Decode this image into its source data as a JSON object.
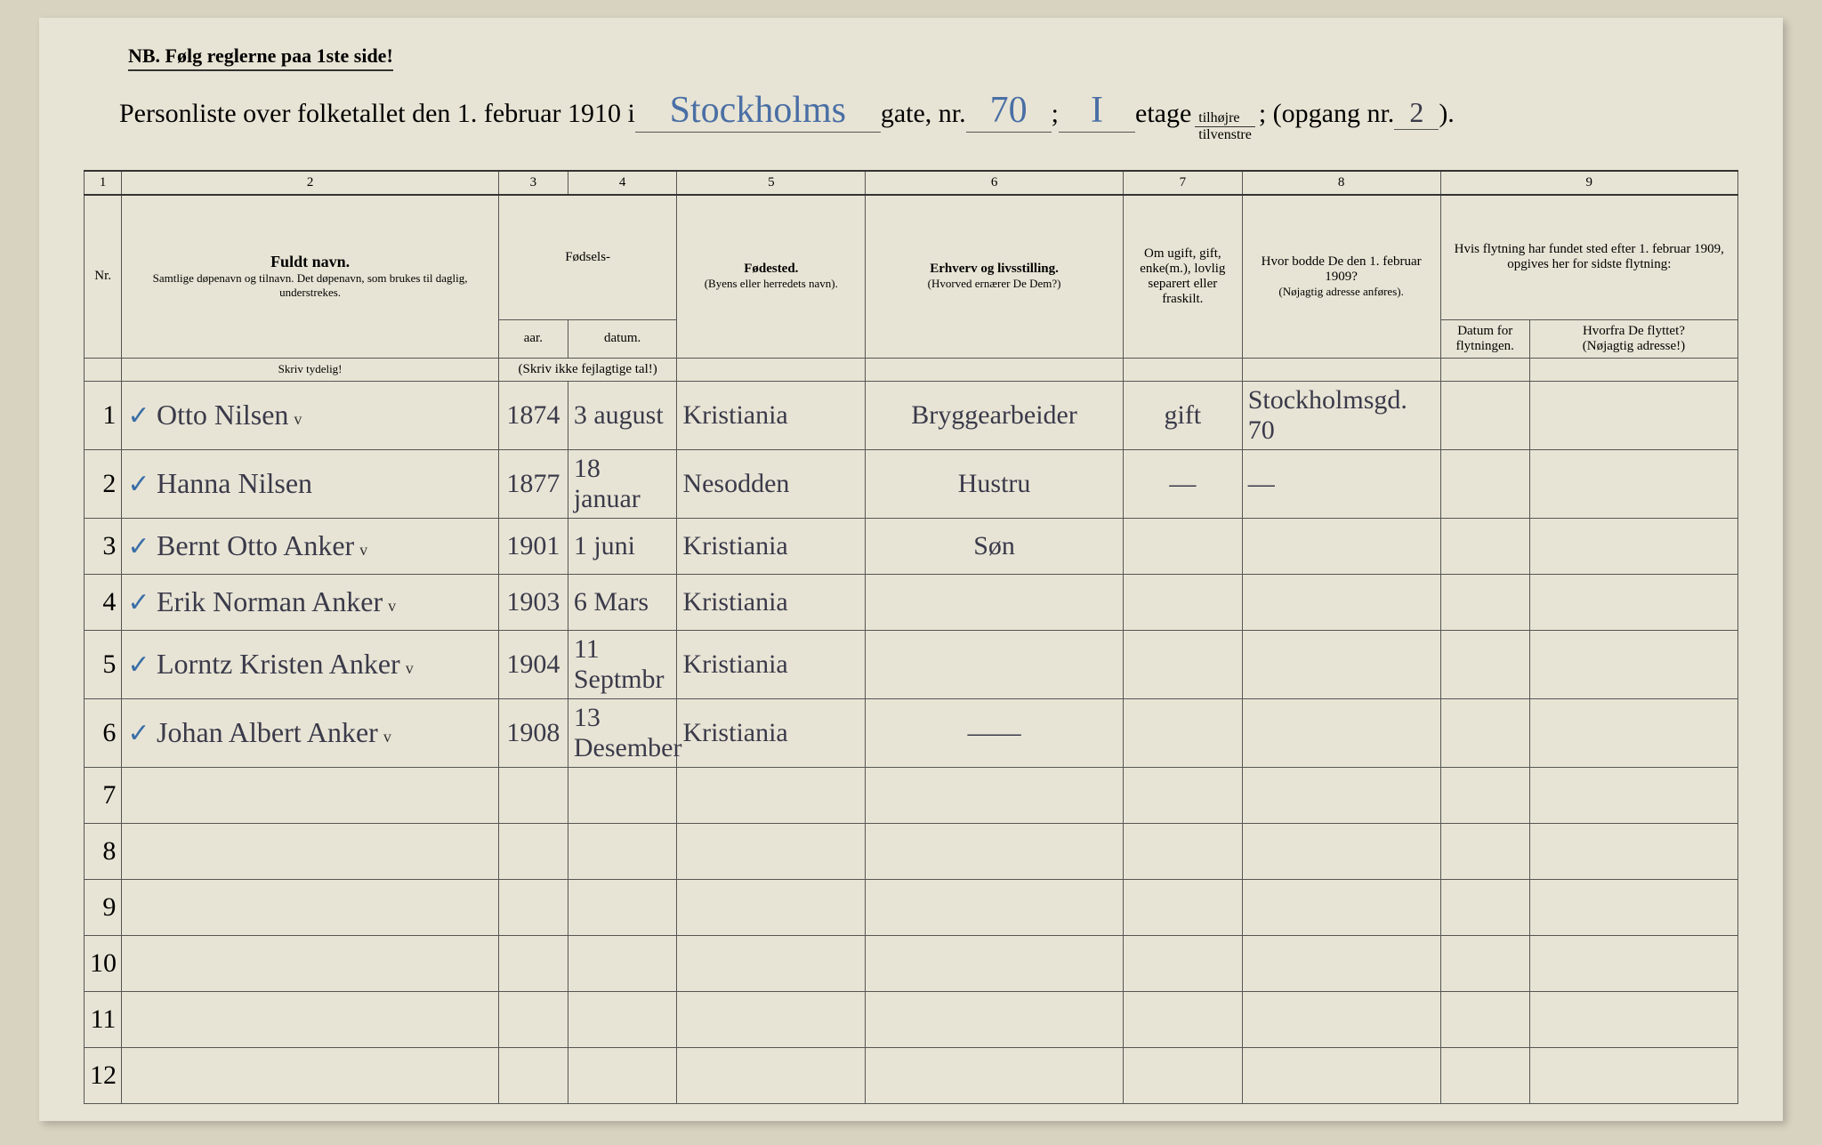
{
  "nb": "NB.  Følg reglerne paa 1ste side!",
  "title": {
    "prefix": "Personliste over folketallet den 1. februar 1910 i",
    "street": "Stockholms",
    "gate_label": "gate, nr.",
    "nr": "70",
    "semicolon": ";",
    "etage_val": "I",
    "etage_label": "etage",
    "tilhojre": "tilhøjre",
    "tilvenstre": "tilvenstre",
    "opgang_label": "; (opgang nr.",
    "opgang": "2",
    "close": ")."
  },
  "colnums": [
    "1",
    "2",
    "3",
    "4",
    "5",
    "6",
    "7",
    "8",
    "9"
  ],
  "headers": {
    "nr": "Nr.",
    "fuldt_navn": "Fuldt navn.",
    "fuldt_sub": "Samtlige døpenavn og tilnavn. Det døpenavn, som brukes til daglig, understrekes.",
    "fodsels": "Fødsels-",
    "aar": "aar.",
    "datum": "datum.",
    "fodsels_sub": "(Skriv ikke fejlagtige tal!)",
    "fodested": "Fødested.",
    "fodested_sub": "(Byens eller herredets navn).",
    "erhverv": "Erhverv og livsstilling.",
    "erhverv_sub": "(Hvorved ernærer De Dem?)",
    "ugift": "Om ugift, gift, enke(m.), lovlig separert eller fraskilt.",
    "bodde": "Hvor bodde De den 1. februar 1909?",
    "bodde_sub": "(Nøjagtig adresse anføres).",
    "flytning": "Hvis flytning har fundet sted efter 1. februar 1909, opgives her for sidste flytning:",
    "datum_flyt": "Datum for flytningen.",
    "hvorfra": "Hvorfra De flyttet?",
    "hvorfra_sub": "(Nøjagtig adresse!)",
    "skriv_tydelig": "Skriv tydelig!"
  },
  "rows": [
    {
      "n": "1",
      "check": "✓",
      "name": "Otto Nilsen",
      "v": "v",
      "aar": "1874",
      "dat": "3 august",
      "sted": "Kristiania",
      "erhverv": "Bryggearbeider",
      "ugift": "gift",
      "bodde": "Stockholmsgd. 70"
    },
    {
      "n": "2",
      "check": "✓",
      "name": "Hanna Nilsen",
      "v": "",
      "aar": "1877",
      "dat": "18 januar",
      "sted": "Nesodden",
      "erhverv": "Hustru",
      "ugift": "—",
      "bodde": "—"
    },
    {
      "n": "3",
      "check": "✓",
      "name": "Bernt Otto Anker",
      "v": "v",
      "aar": "1901",
      "dat": "1 juni",
      "sted": "Kristiania",
      "erhverv": "Søn",
      "ugift": "",
      "bodde": ""
    },
    {
      "n": "4",
      "check": "✓",
      "name": "Erik Norman Anker",
      "v": "v",
      "aar": "1903",
      "dat": "6 Mars",
      "sted": "Kristiania",
      "erhverv": "",
      "ugift": "",
      "bodde": ""
    },
    {
      "n": "5",
      "check": "✓",
      "name": "Lorntz Kristen Anker",
      "v": "v",
      "aar": "1904",
      "dat": "11 Septmbr",
      "sted": "Kristiania",
      "erhverv": "",
      "ugift": "",
      "bodde": ""
    },
    {
      "n": "6",
      "check": "✓",
      "name": "Johan Albert Anker",
      "v": "v",
      "aar": "1908",
      "dat": "13 Desember",
      "sted": "Kristiania",
      "erhverv": "——",
      "ugift": "",
      "bodde": ""
    }
  ],
  "empty_rows": [
    "7",
    "8",
    "9",
    "10",
    "11",
    "12"
  ]
}
